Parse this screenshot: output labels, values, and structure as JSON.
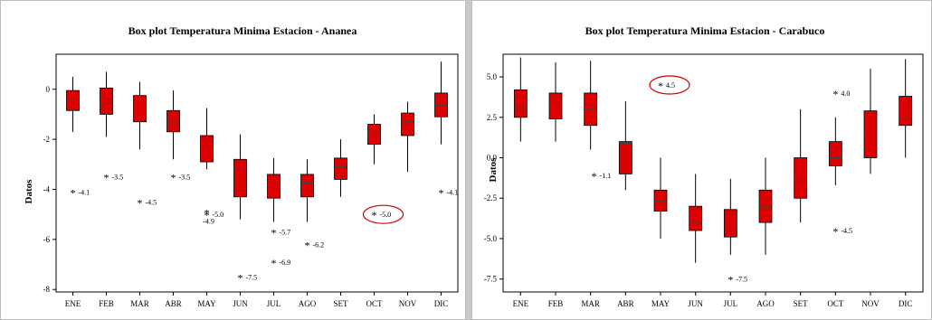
{
  "colors": {
    "box_fill": "#dd0000",
    "box_stroke": "#000000",
    "median": "#444444",
    "annotation_circle": "#cc0000"
  },
  "chart_data": [
    {
      "type": "boxplot",
      "title": "Box plot Temperatura Minima Estacion - Ananea",
      "xlabel": "",
      "ylabel": "Datos",
      "categories": [
        "ENE",
        "FEB",
        "MAR",
        "ABR",
        "MAY",
        "JUN",
        "JUL",
        "AGO",
        "SET",
        "OCT",
        "NOV",
        "DIC"
      ],
      "ylim": [
        -8.1,
        1.4
      ],
      "yticks": [
        0,
        -2,
        -4,
        -6,
        -8
      ],
      "grid": false,
      "boxes": [
        {
          "min": -1.7,
          "q1": -0.85,
          "median": -0.45,
          "q3": -0.05,
          "max": 0.5
        },
        {
          "min": -1.9,
          "q1": -1.0,
          "median": -0.6,
          "q3": 0.05,
          "max": 0.7
        },
        {
          "min": -2.4,
          "q1": -1.3,
          "median": -0.75,
          "q3": -0.25,
          "max": 0.3
        },
        {
          "min": -2.8,
          "q1": -1.7,
          "median": -1.35,
          "q3": -0.85,
          "max": -0.05
        },
        {
          "min": -3.2,
          "q1": -2.9,
          "median": -2.2,
          "q3": -1.85,
          "max": -0.75
        },
        {
          "min": -5.2,
          "q1": -4.3,
          "median": -3.2,
          "q3": -2.8,
          "max": -1.8
        },
        {
          "min": -5.3,
          "q1": -4.35,
          "median": -4.0,
          "q3": -3.4,
          "max": -2.75
        },
        {
          "min": -5.3,
          "q1": -4.3,
          "median": -3.75,
          "q3": -3.4,
          "max": -2.8
        },
        {
          "min": -4.3,
          "q1": -3.6,
          "median": -3.1,
          "q3": -2.75,
          "max": -2.0
        },
        {
          "min": -3.0,
          "q1": -2.2,
          "median": -1.7,
          "q3": -1.4,
          "max": -1.0
        },
        {
          "min": -3.3,
          "q1": -1.85,
          "median": -1.3,
          "q3": -0.95,
          "max": -0.5
        },
        {
          "min": -2.2,
          "q1": -1.1,
          "median": -0.65,
          "q3": -0.15,
          "max": 1.1
        }
      ],
      "outliers": [
        {
          "category": "ENE",
          "value": -4.1,
          "label": "-4.1"
        },
        {
          "category": "FEB",
          "value": -3.5,
          "label": "-3.5"
        },
        {
          "category": "MAR",
          "value": -4.5,
          "label": "-4.5"
        },
        {
          "category": "ABR",
          "value": -3.5,
          "label": "-3.5"
        },
        {
          "category": "MAY",
          "value": -4.9,
          "label": "-4.9",
          "label_below": true
        },
        {
          "category": "MAY",
          "value": -5.0,
          "label": "-5.0"
        },
        {
          "category": "JUN",
          "value": -7.5,
          "label": "-7.5"
        },
        {
          "category": "JUL",
          "value": -5.7,
          "label": "-5.7"
        },
        {
          "category": "JUL",
          "value": -6.9,
          "label": "-6.9"
        },
        {
          "category": "AGO",
          "value": -6.2,
          "label": "-6.2"
        },
        {
          "category": "OCT",
          "value": -5.0,
          "label": "-5.0",
          "circled": true
        },
        {
          "category": "DIC",
          "value": -4.1,
          "label": "-4.1"
        }
      ]
    },
    {
      "type": "boxplot",
      "title": "Box plot Temperatura Minima Estacion - Carabuco",
      "xlabel": "",
      "ylabel": "Datos",
      "categories": [
        "ENE",
        "FEB",
        "MAR",
        "ABR",
        "MAY",
        "JUN",
        "JUL",
        "AGO",
        "SET",
        "OCT",
        "NOV",
        "DIC"
      ],
      "ylim": [
        -8.3,
        6.4
      ],
      "yticks": [
        5.0,
        2.5,
        0.0,
        -2.5,
        -5.0,
        -7.5
      ],
      "ytick_labels": [
        "5.0",
        "2.5",
        "0.0",
        "-2.5",
        "-5.0",
        "-7.5"
      ],
      "grid": false,
      "boxes": [
        {
          "min": 1.0,
          "q1": 2.5,
          "median": 3.1,
          "q3": 4.2,
          "max": 6.2
        },
        {
          "min": 1.0,
          "q1": 2.4,
          "median": 3.4,
          "q3": 4.0,
          "max": 5.9
        },
        {
          "min": 0.5,
          "q1": 2.0,
          "median": 3.0,
          "q3": 4.0,
          "max": 6.0
        },
        {
          "min": -2.0,
          "q1": -1.0,
          "median": 0.9,
          "q3": 1.0,
          "max": 3.5
        },
        {
          "min": -5.0,
          "q1": -3.3,
          "median": -2.7,
          "q3": -2.0,
          "max": 0.0
        },
        {
          "min": -6.5,
          "q1": -4.5,
          "median": -4.0,
          "q3": -3.0,
          "max": -1.0
        },
        {
          "min": -6.0,
          "q1": -4.9,
          "median": -4.2,
          "q3": -3.2,
          "max": -1.3
        },
        {
          "min": -6.0,
          "q1": -4.0,
          "median": -3.0,
          "q3": -2.0,
          "max": 0.0
        },
        {
          "min": -4.0,
          "q1": -2.5,
          "median": -1.3,
          "q3": 0.0,
          "max": 3.0
        },
        {
          "min": -1.7,
          "q1": -0.5,
          "median": 0.0,
          "q3": 1.0,
          "max": 2.5
        },
        {
          "min": -1.0,
          "q1": 0.0,
          "median": 1.5,
          "q3": 2.9,
          "max": 5.5
        },
        {
          "min": 0.0,
          "q1": 2.0,
          "median": 2.5,
          "q3": 3.8,
          "max": 6.1
        }
      ],
      "outliers": [
        {
          "category": "ABR",
          "value": -1.1,
          "label": "-1.1",
          "x_offset": -0.9
        },
        {
          "category": "MAY",
          "value": 4.5,
          "label": "4.5",
          "circled": true
        },
        {
          "category": "JUL",
          "value": -7.5,
          "label": "-7.5"
        },
        {
          "category": "OCT",
          "value": 4.0,
          "label": "4.0"
        },
        {
          "category": "OCT",
          "value": -4.5,
          "label": "-4.5"
        }
      ]
    }
  ]
}
